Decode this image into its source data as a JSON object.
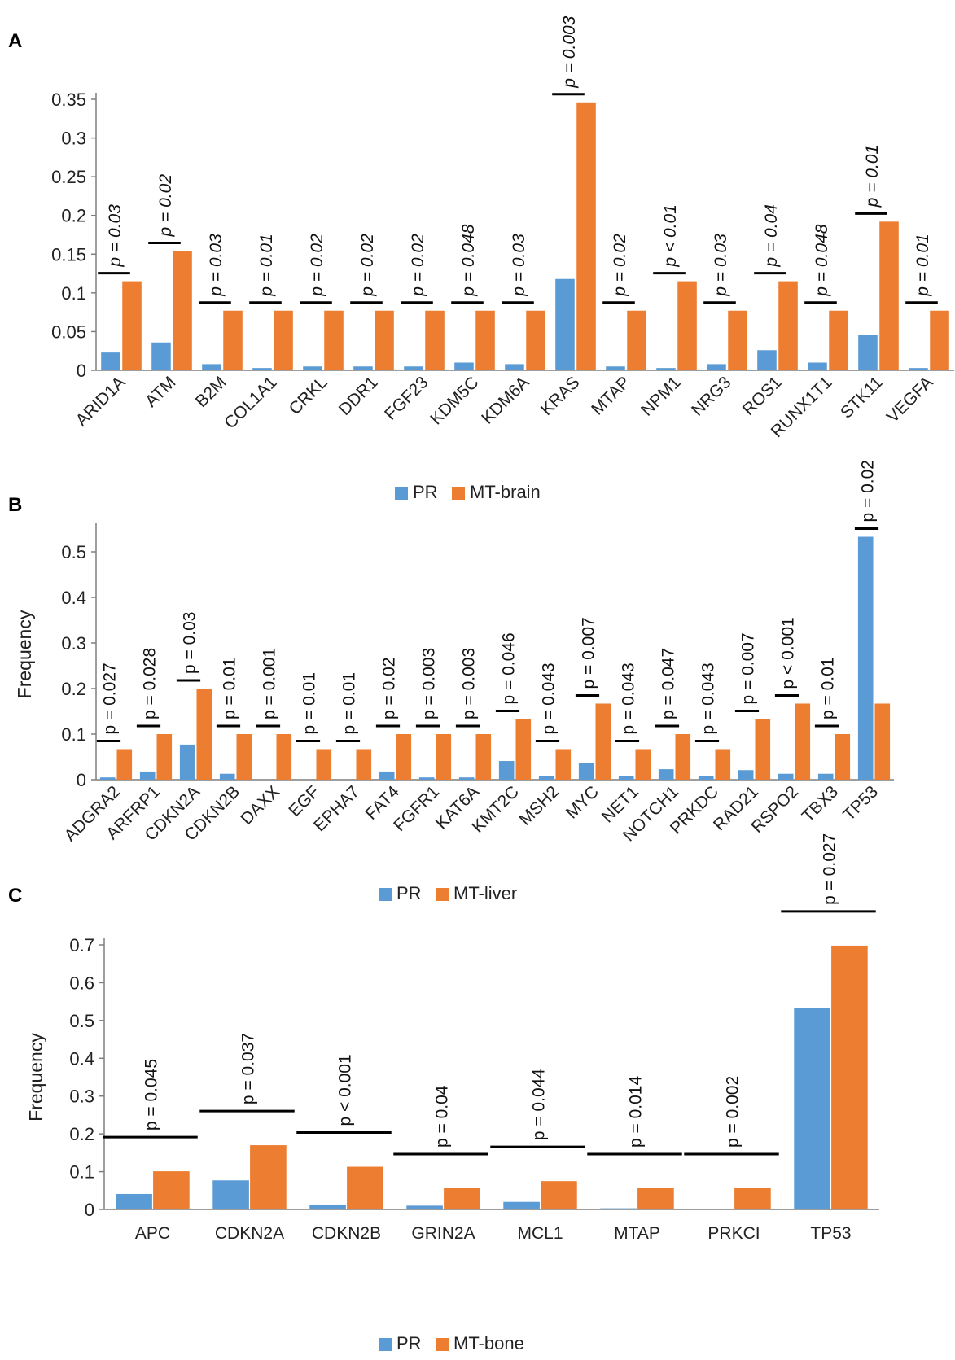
{
  "colors": {
    "pr": "#5B9BD5",
    "mt": "#ED7D31",
    "axis": "#7f7f7f",
    "sig": "#000000"
  },
  "chart_data": [
    {
      "type": "bar",
      "panel_label": "A",
      "ylabel": "",
      "ylim": [
        0,
        0.35
      ],
      "yticks": [
        0,
        0.05,
        0.1,
        0.15,
        0.2,
        0.25,
        0.3,
        0.35
      ],
      "ytick_labels": [
        "0",
        "0.05",
        "0.1",
        "0.15",
        "0.2",
        "0.25",
        "0.3",
        "0.35"
      ],
      "categories": [
        "ARID1A",
        "ATM",
        "B2M",
        "COL1A1",
        "CRKL",
        "DDR1",
        "FGF23",
        "KDM5C",
        "KDM6A",
        "KRAS",
        "MTAP",
        "NPM1",
        "NRG3",
        "ROS1",
        "RUNX1T1",
        "STK11",
        "VEGFA"
      ],
      "series": [
        {
          "name": "PR",
          "values": [
            0.023,
            0.036,
            0.008,
            0.003,
            0.005,
            0.005,
            0.005,
            0.01,
            0.008,
            0.118,
            0.005,
            0.003,
            0.008,
            0.026,
            0.01,
            0.046,
            0.003
          ]
        },
        {
          "name": "MT-brain",
          "values": [
            0.115,
            0.154,
            0.077,
            0.077,
            0.077,
            0.077,
            0.077,
            0.077,
            0.077,
            0.346,
            0.077,
            0.115,
            0.077,
            0.115,
            0.077,
            0.192,
            0.077
          ]
        }
      ],
      "p_values": [
        "p = 0.03",
        "p = 0.02",
        "p = 0.03",
        "p = 0.01",
        "p = 0.02",
        "p = 0.02",
        "p = 0.02",
        "p = 0.048",
        "p = 0.03",
        "p = 0.003",
        "p = 0.02",
        "p < 0.01",
        "p = 0.03",
        "p = 0.04",
        "p = 0.048",
        "p = 0.01",
        "p = 0.01"
      ],
      "p_italic": true,
      "legend": "bottom-center"
    },
    {
      "type": "bar",
      "panel_label": "B",
      "ylabel": "Frequency",
      "ylim": [
        0,
        0.55
      ],
      "yticks": [
        0,
        0.1,
        0.2,
        0.3,
        0.4,
        0.5
      ],
      "ytick_labels": [
        "0",
        "0.1",
        "0.2",
        "0.3",
        "0.4",
        "0.5"
      ],
      "categories": [
        "ADGRA2",
        "ARFRP1",
        "CDKN2A",
        "CDKN2B",
        "DAXX",
        "EGF",
        "EPHA7",
        "FAT4",
        "FGFR1",
        "KAT6A",
        "KMT2C",
        "MSH2",
        "MYC",
        "NET1",
        "NOTCH1",
        "PRKDC",
        "RAD21",
        "RSPO2",
        "TBX3",
        "TP53"
      ],
      "series": [
        {
          "name": "PR",
          "values": [
            0.005,
            0.018,
            0.077,
            0.013,
            0.0,
            0.0,
            0.0,
            0.018,
            0.005,
            0.005,
            0.041,
            0.008,
            0.036,
            0.008,
            0.023,
            0.008,
            0.021,
            0.013,
            0.013,
            0.533
          ]
        },
        {
          "name": "MT-liver",
          "values": [
            0.067,
            0.1,
            0.2,
            0.1,
            0.1,
            0.067,
            0.067,
            0.1,
            0.1,
            0.1,
            0.133,
            0.067,
            0.167,
            0.067,
            0.1,
            0.067,
            0.133,
            0.167,
            0.1,
            0.167
          ]
        }
      ],
      "p_values": [
        "p = 0.027",
        "p = 0.028",
        "p = 0.03",
        "p = 0.01",
        "p = 0.001",
        "p = 0.01",
        "p = 0.01",
        "p = 0.02",
        "p = 0.003",
        "p = 0.003",
        "p = 0.046",
        "p = 0.043",
        "p = 0.007",
        "p = 0.043",
        "p = 0.047",
        "p = 0.043",
        "p = 0.007",
        "p < 0.001",
        "p = 0.01",
        "p = 0.02"
      ],
      "p_italic": false,
      "legend": "bottom-center"
    },
    {
      "type": "bar",
      "panel_label": "C",
      "ylabel": "Frequency",
      "ylim": [
        0,
        0.7
      ],
      "yticks": [
        0,
        0.1,
        0.2,
        0.3,
        0.4,
        0.5,
        0.6,
        0.7
      ],
      "ytick_labels": [
        "0",
        "0.1",
        "0.2",
        "0.3",
        "0.4",
        "0.5",
        "0.6",
        "0.7"
      ],
      "categories": [
        "APC",
        "CDKN2A",
        "CDKN2B",
        "GRIN2A",
        "MCL1",
        "MTAP",
        "PRKCI",
        "TP53"
      ],
      "series": [
        {
          "name": "PR",
          "values": [
            0.041,
            0.077,
            0.013,
            0.01,
            0.02,
            0.003,
            0.0,
            0.533
          ]
        },
        {
          "name": "MT-bone",
          "values": [
            0.101,
            0.17,
            0.113,
            0.056,
            0.075,
            0.056,
            0.056,
            0.698
          ]
        }
      ],
      "p_values": [
        "p = 0.045",
        "p = 0.037",
        "p < 0.001",
        "p = 0.04",
        "p = 0.044",
        "p = 0.014",
        "p = 0.002",
        "p = 0.027"
      ],
      "p_italic": false,
      "legend": "bottom-center"
    }
  ]
}
